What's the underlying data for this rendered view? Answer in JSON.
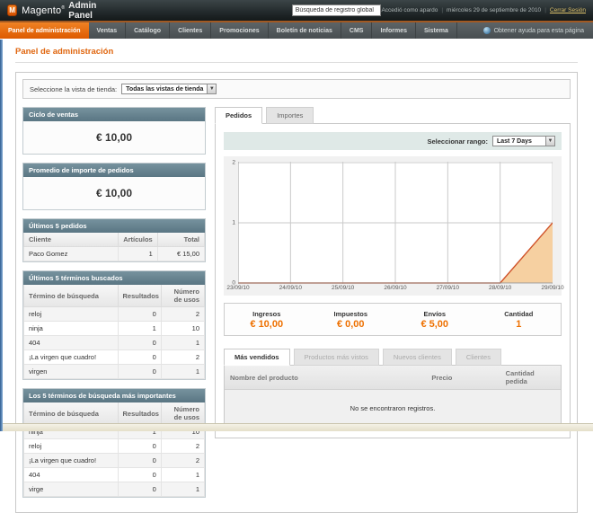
{
  "header": {
    "brand": "Magento",
    "brand_mark": "®",
    "brand_suffix": "Admin Panel",
    "logo_letter": "M",
    "search_value": "Búsqueda de registro global",
    "logged_in": "Accedió como apardo",
    "separator": "|",
    "date": "miércoles 29 de septiembre de 2010",
    "logout": "Cerrar Sesión"
  },
  "nav": {
    "items": [
      {
        "label": "Panel de administración",
        "active": true
      },
      {
        "label": "Ventas",
        "active": false
      },
      {
        "label": "Catálogo",
        "active": false
      },
      {
        "label": "Clientes",
        "active": false
      },
      {
        "label": "Promociones",
        "active": false
      },
      {
        "label": "Boletín de noticias",
        "active": false
      },
      {
        "label": "CMS",
        "active": false
      },
      {
        "label": "Informes",
        "active": false
      },
      {
        "label": "Sistema",
        "active": false
      }
    ],
    "help": "Obtener ayuda para esta página"
  },
  "page": {
    "title": "Panel de administración"
  },
  "store_selector": {
    "label": "Seleccione la vista de tienda:",
    "value": "Todas las vistas de tienda"
  },
  "left": {
    "sales_box": {
      "title": "Ciclo de ventas",
      "value": "€ 10,00"
    },
    "avg_box": {
      "title": "Promedio de importe de pedidos",
      "value": "€ 10,00"
    },
    "last_orders": {
      "title": "Últimos 5 pedidos",
      "headers": [
        "Cliente",
        "Artículos",
        "Total"
      ],
      "rows": [
        [
          "Paco Gomez",
          "1",
          "€ 15,00"
        ]
      ]
    },
    "last_search": {
      "title": "Últimos 5 términos buscados",
      "headers": [
        "Término de búsqueda",
        "Resultados",
        "Número de usos"
      ],
      "rows": [
        [
          "reloj",
          "0",
          "2"
        ],
        [
          "ninja",
          "1",
          "10"
        ],
        [
          "404",
          "0",
          "1"
        ],
        [
          "¡La virgen que cuadro!",
          "0",
          "2"
        ],
        [
          "virgen",
          "0",
          "1"
        ]
      ]
    },
    "top_search": {
      "title": "Los 5 términos de búsqueda más importantes",
      "headers": [
        "Término de búsqueda",
        "Resultados",
        "Número de usos"
      ],
      "rows": [
        [
          "ninja",
          "1",
          "10"
        ],
        [
          "reloj",
          "0",
          "2"
        ],
        [
          "¡La virgen que cuadro!",
          "0",
          "2"
        ],
        [
          "404",
          "0",
          "1"
        ],
        [
          "virge",
          "0",
          "1"
        ]
      ]
    }
  },
  "right": {
    "tabs": [
      {
        "label": "Pedidos",
        "active": true
      },
      {
        "label": "Importes",
        "active": false
      }
    ],
    "range": {
      "label": "Seleccionar rango:",
      "value": "Last 7 Days"
    },
    "stats": [
      {
        "label": "Ingresos",
        "value": "€ 10,00"
      },
      {
        "label": "Impuestos",
        "value": "€ 0,00"
      },
      {
        "label": "Envíos",
        "value": "€ 5,00"
      },
      {
        "label": "Cantidad",
        "value": "1"
      }
    ],
    "bottom_tabs": [
      {
        "label": "Más vendidos",
        "active": true
      },
      {
        "label": "Productos más vistos",
        "active": false
      },
      {
        "label": "Nuevos clientes",
        "active": false
      },
      {
        "label": "Clientes",
        "active": false
      }
    ],
    "products_table": {
      "headers": [
        "Nombre del producto",
        "Precio",
        "Cantidad pedida"
      ],
      "empty": "No se encontraron registros."
    }
  },
  "chart_data": {
    "type": "area",
    "title": "Pedidos",
    "x": [
      "23/09/10",
      "24/09/10",
      "25/09/10",
      "26/09/10",
      "27/09/10",
      "28/09/10",
      "29/09/10"
    ],
    "series": [
      {
        "name": "Pedidos",
        "values": [
          0,
          0,
          0,
          0,
          0,
          0,
          1
        ]
      }
    ],
    "ylim": [
      0,
      2
    ],
    "yticks": [
      0,
      1,
      2
    ],
    "grid": true,
    "line_color": "#cf5229",
    "fill_color": "#f6cd9c",
    "axis_color": "#999999",
    "grid_color": "#c9c9c9"
  }
}
